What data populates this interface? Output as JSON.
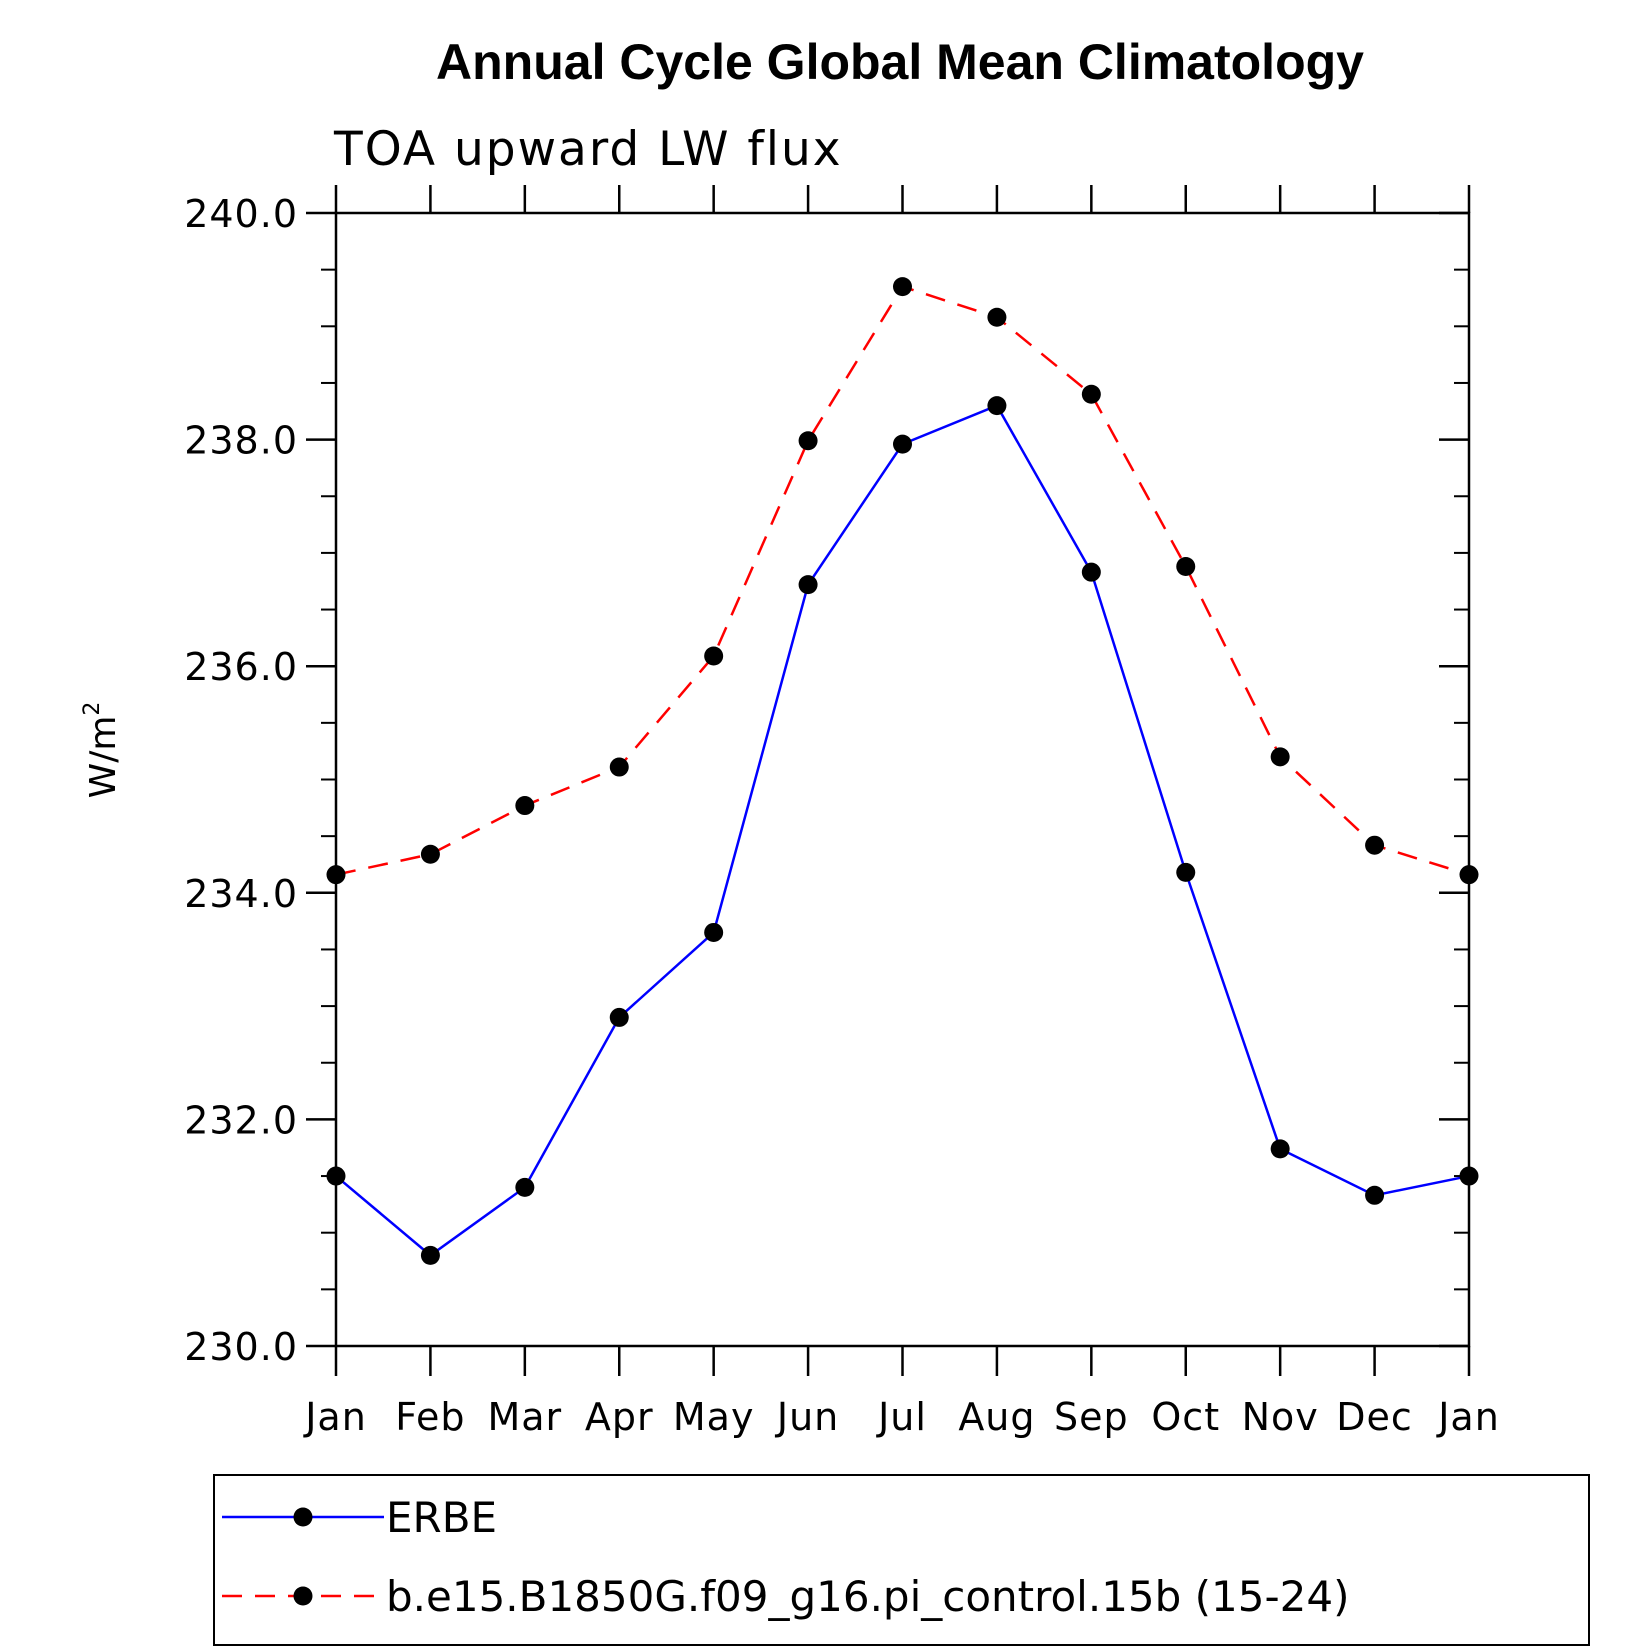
{
  "chart_data": {
    "type": "line",
    "title": "Annual Cycle Global Mean Climatology",
    "subtitle": "TOA upward LW flux",
    "ylabel": "W/m",
    "ylabel_sup": "2",
    "xlabel": "",
    "categories": [
      "Jan",
      "Feb",
      "Mar",
      "Apr",
      "May",
      "Jun",
      "Jul",
      "Aug",
      "Sep",
      "Oct",
      "Nov",
      "Dec",
      "Jan"
    ],
    "ylim": [
      230.0,
      240.0
    ],
    "yticks": [
      "230.0",
      "232.0",
      "234.0",
      "236.0",
      "238.0",
      "240.0"
    ],
    "grid": false,
    "legend_position": "bottom",
    "series": [
      {
        "name": "ERBE",
        "color": "#0000ff",
        "style": "solid",
        "marker": "circle",
        "values": [
          231.5,
          230.8,
          231.4,
          232.9,
          233.65,
          236.72,
          237.96,
          238.3,
          236.83,
          234.18,
          231.74,
          231.33,
          231.5
        ]
      },
      {
        "name": "b.e15.B1850G.f09_g16.pi_control.15b (15-24)",
        "color": "#ff0000",
        "style": "dashed",
        "marker": "circle",
        "values": [
          234.16,
          234.34,
          234.77,
          235.11,
          236.09,
          237.99,
          239.35,
          239.08,
          238.4,
          236.88,
          235.2,
          234.42,
          234.16
        ]
      }
    ]
  }
}
